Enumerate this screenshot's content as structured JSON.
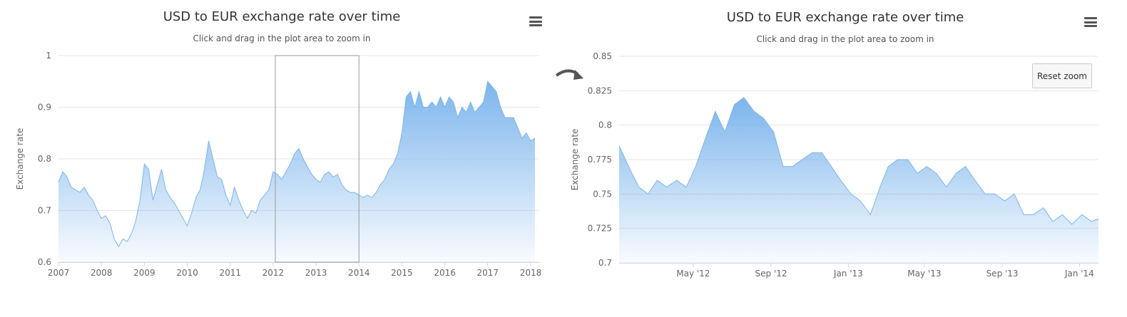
{
  "colors": {
    "series": "#7cb5ec",
    "grid": "#e6e6e6",
    "text": "#666666",
    "selection": "#999999"
  },
  "left": {
    "title": "USD to EUR exchange rate over time",
    "subtitle": "Click and drag in the plot area to zoom in",
    "menu_icon": "hamburger-menu-icon"
  },
  "right": {
    "title": "USD to EUR exchange rate over time",
    "subtitle": "Click and drag in the plot area to zoom in",
    "menu_icon": "hamburger-menu-icon",
    "reset_label": "Reset zoom"
  },
  "arrow_icon": "curved-arrow-icon",
  "chart_data": [
    {
      "type": "area",
      "title": "USD to EUR exchange rate over time",
      "subtitle": "Click and drag in the plot area to zoom in",
      "xlabel": "",
      "ylabel": "Exchange rate",
      "xlim": [
        "2007",
        "2018.2"
      ],
      "ylim": [
        0.6,
        1
      ],
      "y_ticks": [
        "0.6",
        "0.7",
        "0.8",
        "0.9",
        "1"
      ],
      "x_ticks": [
        "2007",
        "2008",
        "2009",
        "2010",
        "2011",
        "2012",
        "2013",
        "2014",
        "2015",
        "2016",
        "2017",
        "2018"
      ],
      "grid": true,
      "selection": [
        "2012.05",
        "2014.0"
      ],
      "series": [
        {
          "x": [
            2007.0,
            2007.1,
            2007.2,
            2007.3,
            2007.4,
            2007.5,
            2007.6,
            2007.7,
            2007.8,
            2007.9,
            2008.0,
            2008.1,
            2008.2,
            2008.3,
            2008.4,
            2008.5,
            2008.6,
            2008.7,
            2008.8,
            2008.9,
            2009.0,
            2009.1,
            2009.2,
            2009.3,
            2009.4,
            2009.5,
            2009.6,
            2009.7,
            2009.8,
            2009.9,
            2010.0,
            2010.1,
            2010.2,
            2010.3,
            2010.4,
            2010.5,
            2010.6,
            2010.7,
            2010.8,
            2010.9,
            2011.0,
            2011.1,
            2011.2,
            2011.3,
            2011.4,
            2011.5,
            2011.6,
            2011.7,
            2011.8,
            2011.9,
            2012.0,
            2012.1,
            2012.2,
            2012.3,
            2012.4,
            2012.5,
            2012.6,
            2012.7,
            2012.8,
            2012.9,
            2013.0,
            2013.1,
            2013.2,
            2013.3,
            2013.4,
            2013.5,
            2013.6,
            2013.7,
            2013.8,
            2013.9,
            2014.0,
            2014.1,
            2014.2,
            2014.3,
            2014.4,
            2014.5,
            2014.6,
            2014.7,
            2014.8,
            2014.9,
            2015.0,
            2015.1,
            2015.2,
            2015.3,
            2015.4,
            2015.5,
            2015.6,
            2015.7,
            2015.8,
            2015.9,
            2016.0,
            2016.1,
            2016.2,
            2016.3,
            2016.4,
            2016.5,
            2016.6,
            2016.7,
            2016.8,
            2016.9,
            2017.0,
            2017.1,
            2017.2,
            2017.3,
            2017.4,
            2017.5,
            2017.6,
            2017.7,
            2017.8,
            2017.9,
            2018.0,
            2018.1
          ],
          "y": [
            0.755,
            0.775,
            0.765,
            0.745,
            0.74,
            0.735,
            0.745,
            0.73,
            0.72,
            0.7,
            0.685,
            0.69,
            0.675,
            0.645,
            0.63,
            0.645,
            0.64,
            0.655,
            0.68,
            0.72,
            0.79,
            0.78,
            0.72,
            0.75,
            0.78,
            0.74,
            0.725,
            0.715,
            0.7,
            0.685,
            0.67,
            0.695,
            0.725,
            0.74,
            0.78,
            0.835,
            0.8,
            0.765,
            0.76,
            0.73,
            0.71,
            0.745,
            0.72,
            0.7,
            0.685,
            0.7,
            0.695,
            0.72,
            0.73,
            0.74,
            0.775,
            0.77,
            0.76,
            0.775,
            0.79,
            0.81,
            0.82,
            0.8,
            0.785,
            0.77,
            0.76,
            0.755,
            0.77,
            0.775,
            0.765,
            0.77,
            0.75,
            0.74,
            0.735,
            0.735,
            0.73,
            0.725,
            0.73,
            0.725,
            0.735,
            0.75,
            0.76,
            0.78,
            0.79,
            0.81,
            0.85,
            0.92,
            0.93,
            0.9,
            0.93,
            0.9,
            0.9,
            0.91,
            0.9,
            0.92,
            0.9,
            0.92,
            0.91,
            0.88,
            0.9,
            0.89,
            0.91,
            0.89,
            0.9,
            0.91,
            0.95,
            0.94,
            0.93,
            0.9,
            0.88,
            0.88,
            0.88,
            0.86,
            0.84,
            0.85,
            0.835,
            0.84
          ]
        }
      ]
    },
    {
      "type": "area",
      "title": "USD to EUR exchange rate over time",
      "subtitle": "Click and drag in the plot area to zoom in",
      "xlabel": "",
      "ylabel": "Exchange rate",
      "xlim": [
        "2012-01-05",
        "2014-01-31"
      ],
      "ylim": [
        0.7,
        0.85
      ],
      "y_ticks": [
        "0.7",
        "0.725",
        "0.75",
        "0.775",
        "0.8",
        "0.825",
        "0.85"
      ],
      "x_ticks": [
        "May '12",
        "Sep '12",
        "Jan '13",
        "May '13",
        "Sep '13",
        "Jan '14"
      ],
      "grid": true,
      "series": [
        {
          "x": [
            "2012-01-05",
            "2012-01-20",
            "2012-02-05",
            "2012-02-20",
            "2012-03-05",
            "2012-03-20",
            "2012-04-05",
            "2012-04-20",
            "2012-05-05",
            "2012-05-20",
            "2012-06-05",
            "2012-06-20",
            "2012-07-05",
            "2012-07-20",
            "2012-08-05",
            "2012-08-20",
            "2012-09-05",
            "2012-09-20",
            "2012-10-05",
            "2012-10-20",
            "2012-11-05",
            "2012-11-20",
            "2012-12-05",
            "2012-12-20",
            "2013-01-05",
            "2013-01-20",
            "2013-02-05",
            "2013-02-20",
            "2013-03-05",
            "2013-03-20",
            "2013-04-05",
            "2013-04-20",
            "2013-05-05",
            "2013-05-20",
            "2013-06-05",
            "2013-06-20",
            "2013-07-05",
            "2013-07-20",
            "2013-08-05",
            "2013-08-20",
            "2013-09-05",
            "2013-09-20",
            "2013-10-05",
            "2013-10-20",
            "2013-11-05",
            "2013-11-20",
            "2013-12-05",
            "2013-12-20",
            "2014-01-05",
            "2014-01-20",
            "2014-01-31"
          ],
          "y": [
            0.785,
            0.77,
            0.755,
            0.75,
            0.76,
            0.755,
            0.76,
            0.755,
            0.77,
            0.79,
            0.81,
            0.795,
            0.815,
            0.82,
            0.81,
            0.805,
            0.795,
            0.77,
            0.77,
            0.775,
            0.78,
            0.78,
            0.77,
            0.76,
            0.75,
            0.745,
            0.735,
            0.755,
            0.77,
            0.775,
            0.775,
            0.765,
            0.77,
            0.765,
            0.755,
            0.765,
            0.77,
            0.76,
            0.75,
            0.75,
            0.745,
            0.75,
            0.735,
            0.735,
            0.74,
            0.73,
            0.735,
            0.728,
            0.735,
            0.73,
            0.732
          ]
        }
      ]
    }
  ]
}
